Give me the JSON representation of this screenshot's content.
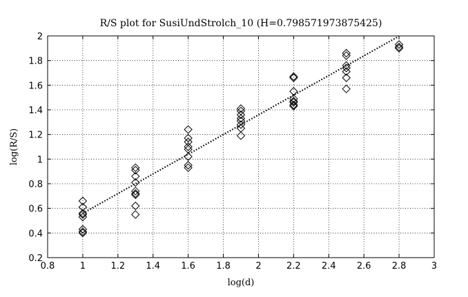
{
  "chart_data": {
    "type": "scatter",
    "title": "R/S plot for SusiUndStrolch_10 (H=0.798571973875425)",
    "xlabel": "log(d)",
    "ylabel": "log(R/S)",
    "xlim": [
      0.8,
      3
    ],
    "ylim": [
      0.2,
      2
    ],
    "xticks": [
      "0.8",
      "1",
      "1.2",
      "1.4",
      "1.6",
      "1.8",
      "2",
      "2.2",
      "2.4",
      "2.6",
      "2.8",
      "3"
    ],
    "yticks": [
      "0.2",
      "0.4",
      "0.6",
      "0.8",
      "1",
      "1.2",
      "1.4",
      "1.6",
      "1.8",
      "2"
    ],
    "grid": true,
    "marker": "diamond",
    "colors": {
      "marker": "#000000",
      "grid": "#000000",
      "fit": "#000000"
    },
    "points": [
      {
        "x": 1.0,
        "y": 0.66
      },
      {
        "x": 1.0,
        "y": 0.61
      },
      {
        "x": 1.0,
        "y": 0.56
      },
      {
        "x": 1.0,
        "y": 0.55
      },
      {
        "x": 1.0,
        "y": 0.53
      },
      {
        "x": 1.0,
        "y": 0.43
      },
      {
        "x": 1.0,
        "y": 0.41
      },
      {
        "x": 1.0,
        "y": 0.4
      },
      {
        "x": 1.3,
        "y": 0.93
      },
      {
        "x": 1.3,
        "y": 0.91
      },
      {
        "x": 1.3,
        "y": 0.86
      },
      {
        "x": 1.3,
        "y": 0.81
      },
      {
        "x": 1.3,
        "y": 0.74
      },
      {
        "x": 1.3,
        "y": 0.72
      },
      {
        "x": 1.3,
        "y": 0.71
      },
      {
        "x": 1.3,
        "y": 0.62
      },
      {
        "x": 1.3,
        "y": 0.55
      },
      {
        "x": 1.6,
        "y": 1.24
      },
      {
        "x": 1.6,
        "y": 1.17
      },
      {
        "x": 1.6,
        "y": 1.14
      },
      {
        "x": 1.6,
        "y": 1.1
      },
      {
        "x": 1.6,
        "y": 1.08
      },
      {
        "x": 1.6,
        "y": 1.02
      },
      {
        "x": 1.6,
        "y": 0.95
      },
      {
        "x": 1.6,
        "y": 0.93
      },
      {
        "x": 1.9,
        "y": 1.41
      },
      {
        "x": 1.9,
        "y": 1.39
      },
      {
        "x": 1.9,
        "y": 1.36
      },
      {
        "x": 1.9,
        "y": 1.33
      },
      {
        "x": 1.9,
        "y": 1.31
      },
      {
        "x": 1.9,
        "y": 1.28
      },
      {
        "x": 1.9,
        "y": 1.25
      },
      {
        "x": 1.9,
        "y": 1.19
      },
      {
        "x": 2.2,
        "y": 1.67
      },
      {
        "x": 2.2,
        "y": 1.66
      },
      {
        "x": 2.2,
        "y": 1.55
      },
      {
        "x": 2.2,
        "y": 1.49
      },
      {
        "x": 2.2,
        "y": 1.47
      },
      {
        "x": 2.2,
        "y": 1.46
      },
      {
        "x": 2.2,
        "y": 1.44
      },
      {
        "x": 2.2,
        "y": 1.43
      },
      {
        "x": 2.5,
        "y": 1.86
      },
      {
        "x": 2.5,
        "y": 1.84
      },
      {
        "x": 2.5,
        "y": 1.76
      },
      {
        "x": 2.5,
        "y": 1.74
      },
      {
        "x": 2.5,
        "y": 1.71
      },
      {
        "x": 2.5,
        "y": 1.66
      },
      {
        "x": 2.5,
        "y": 1.57
      },
      {
        "x": 2.8,
        "y": 1.93
      },
      {
        "x": 2.8,
        "y": 1.91
      },
      {
        "x": 2.8,
        "y": 1.9
      }
    ],
    "fit_line": {
      "x": [
        1.0,
        2.8
      ],
      "y": [
        0.56,
        1.998
      ]
    }
  }
}
